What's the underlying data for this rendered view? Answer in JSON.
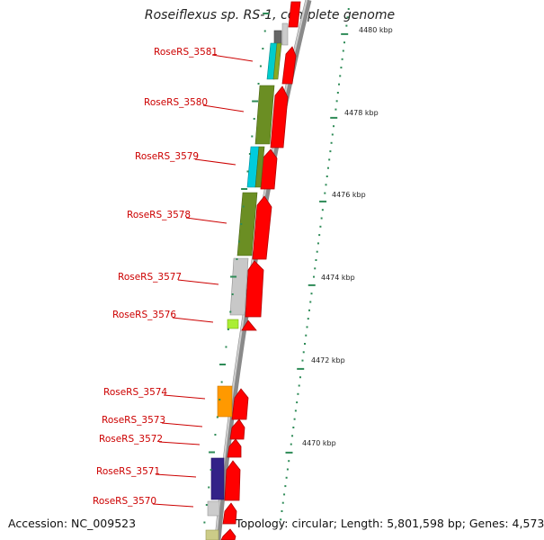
{
  "title": "Roseiflexus sp. RS-1, complete genome",
  "footer": {
    "accession": "Accession: NC_009523",
    "topology": "Topology: circular; Length: 5,801,598 bp; Genes: 4,573"
  },
  "scale_labels": [
    "4480 kbp",
    "4478 kbp",
    "4476 kbp",
    "4474 kbp",
    "4472 kbp",
    "4470 kbp"
  ],
  "gene_labels": [
    "RoseRS_3581",
    "RoseRS_3580",
    "RoseRS_3579",
    "RoseRS_3578",
    "RoseRS_3577",
    "RoseRS_3576",
    "RoseRS_3574",
    "RoseRS_3573",
    "RoseRS_3572",
    "RoseRS_3571",
    "RoseRS_3570"
  ],
  "colors": {
    "gene_arrow": "#ff0000",
    "label_text": "#cc0000",
    "tick": "#2e8b57",
    "backbone": "#888888"
  }
}
